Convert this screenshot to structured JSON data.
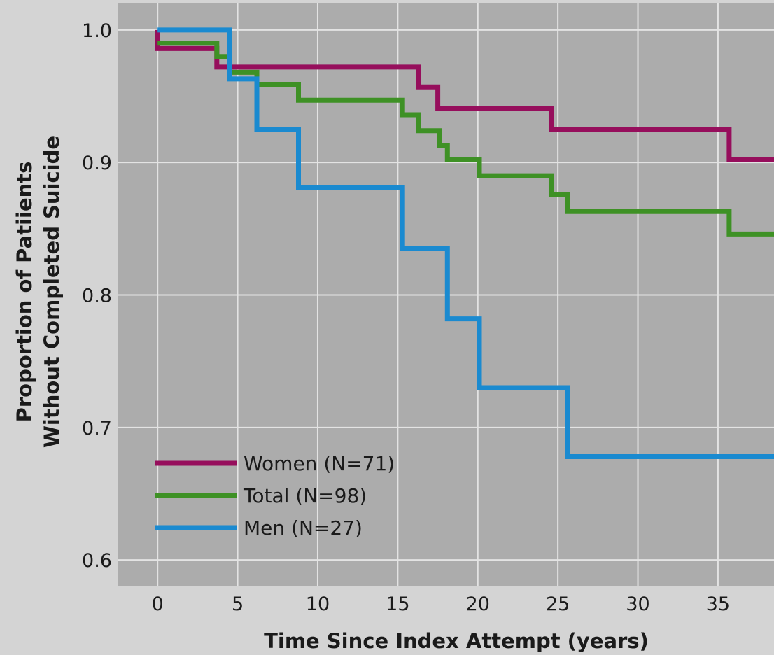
{
  "chart_data": {
    "type": "line",
    "step": true,
    "xlabel": "Time Since Index Attempt (years)",
    "ylabel_lines": [
      "Proportion of Patiients",
      "Without Completed Suicide"
    ],
    "xlim": [
      -2.5,
      38.5
    ],
    "ylim": [
      0.58,
      1.02
    ],
    "xticks": [
      0,
      5,
      10,
      15,
      20,
      25,
      30,
      35
    ],
    "yticks": [
      0.6,
      0.7,
      0.8,
      0.9,
      1.0
    ],
    "ytick_labels": [
      "0.6",
      "0.7",
      "0.8",
      "0.9",
      "1.0"
    ],
    "grid": true,
    "legend_position": "bottom-left",
    "series": [
      {
        "name": "Women (N=71)",
        "color": "#960e5c",
        "points": [
          [
            0,
            1.0
          ],
          [
            0,
            0.986
          ],
          [
            3.7,
            0.986
          ],
          [
            3.7,
            0.972
          ],
          [
            16.3,
            0.972
          ],
          [
            16.3,
            0.957
          ],
          [
            17.5,
            0.957
          ],
          [
            17.5,
            0.941
          ],
          [
            24.6,
            0.941
          ],
          [
            24.6,
            0.925
          ],
          [
            35.7,
            0.925
          ],
          [
            35.7,
            0.902
          ],
          [
            38.5,
            0.902
          ]
        ]
      },
      {
        "name": "Total (N=98)",
        "color": "#3e9125",
        "points": [
          [
            0,
            0.99
          ],
          [
            3.7,
            0.99
          ],
          [
            3.7,
            0.98
          ],
          [
            4.5,
            0.98
          ],
          [
            4.5,
            0.968
          ],
          [
            6.2,
            0.968
          ],
          [
            6.2,
            0.959
          ],
          [
            8.8,
            0.959
          ],
          [
            8.8,
            0.947
          ],
          [
            15.3,
            0.947
          ],
          [
            15.3,
            0.936
          ],
          [
            16.3,
            0.936
          ],
          [
            16.3,
            0.924
          ],
          [
            17.6,
            0.924
          ],
          [
            17.6,
            0.913
          ],
          [
            18.1,
            0.913
          ],
          [
            18.1,
            0.902
          ],
          [
            20.1,
            0.902
          ],
          [
            20.1,
            0.89
          ],
          [
            24.6,
            0.89
          ],
          [
            24.6,
            0.876
          ],
          [
            25.6,
            0.876
          ],
          [
            25.6,
            0.863
          ],
          [
            35.7,
            0.863
          ],
          [
            35.7,
            0.846
          ],
          [
            38.5,
            0.846
          ]
        ]
      },
      {
        "name": "Men (N=27)",
        "color": "#1a8ad0",
        "points": [
          [
            0,
            1.0
          ],
          [
            4.5,
            1.0
          ],
          [
            4.5,
            0.963
          ],
          [
            6.2,
            0.963
          ],
          [
            6.2,
            0.925
          ],
          [
            8.8,
            0.925
          ],
          [
            8.8,
            0.881
          ],
          [
            15.3,
            0.881
          ],
          [
            15.3,
            0.835
          ],
          [
            18.1,
            0.835
          ],
          [
            18.1,
            0.782
          ],
          [
            20.1,
            0.782
          ],
          [
            20.1,
            0.73
          ],
          [
            25.6,
            0.73
          ],
          [
            25.6,
            0.678
          ],
          [
            38.5,
            0.678
          ]
        ]
      }
    ]
  }
}
